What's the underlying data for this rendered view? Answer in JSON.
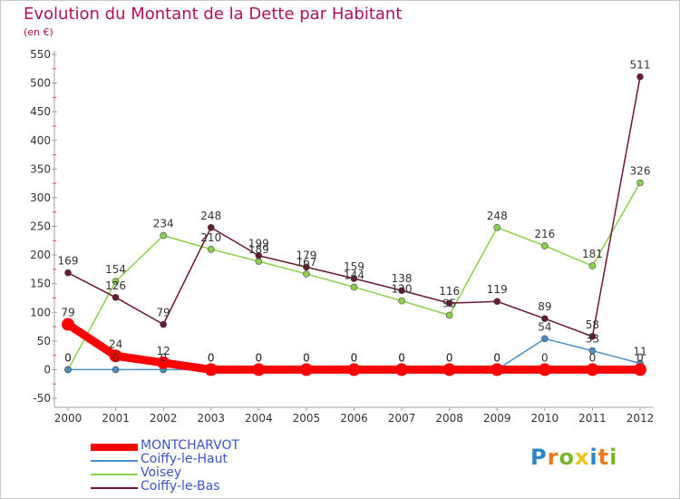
{
  "header": {
    "title": "Evolution du Montant de la Dette par Habitant",
    "subtitle": "(en €)"
  },
  "logo": {
    "letters": [
      "P",
      "r",
      "o",
      "x",
      "i",
      "t",
      "i"
    ],
    "colors": [
      "#2e86c8",
      "#e87a1e",
      "#7ab829",
      "#e8c41e",
      "#2e86c8",
      "#e87a1e",
      "#7ab829"
    ]
  },
  "legend": [
    {
      "label": "MONTCHARVOT",
      "color": "#ff0000"
    },
    {
      "label": "Coiffy-le-Haut",
      "color": "#4a8fc8"
    },
    {
      "label": "Voisey",
      "color": "#8ad04a"
    },
    {
      "label": "Coiffy-le-Bas",
      "color": "#6a1a2a"
    }
  ],
  "chart_data": {
    "type": "line",
    "title": "Evolution du Montant de la Dette par Habitant",
    "ylabel": "(en €)",
    "xlabel": "",
    "x": [
      "2000",
      "2001",
      "2002",
      "2003",
      "2004",
      "2005",
      "2006",
      "2007",
      "2008",
      "2009",
      "2010",
      "2011",
      "2012"
    ],
    "ylim": [
      -50,
      550
    ],
    "yticks": [
      "-50",
      "0",
      "50",
      "100",
      "150",
      "200",
      "250",
      "300",
      "350",
      "400",
      "450",
      "500",
      "550"
    ],
    "grid": false,
    "legend_position": "bottom-left",
    "series": [
      {
        "name": "MONTCHARVOT",
        "color": "#ff0000",
        "values": [
          79,
          24,
          12,
          0,
          0,
          0,
          0,
          0,
          0,
          0,
          0,
          0,
          0
        ],
        "labels": [
          "79",
          "24",
          "12",
          "0",
          "0",
          "0",
          "0",
          "0",
          "0",
          "0",
          "0",
          "0",
          "0"
        ]
      },
      {
        "name": "Coiffy-le-Haut",
        "color": "#4a8fc8",
        "values": [
          0,
          0,
          0,
          0,
          0,
          0,
          0,
          0,
          0,
          0,
          54,
          33,
          11
        ],
        "labels": [
          "0",
          "0",
          "0",
          "0",
          "0",
          "0",
          "0",
          "0",
          "0",
          "0",
          "54",
          "33",
          "11"
        ]
      },
      {
        "name": "Voisey",
        "color": "#8ad04a",
        "values": [
          0,
          154,
          234,
          210,
          189,
          167,
          144,
          120,
          95,
          248,
          216,
          181,
          326
        ],
        "labels": [
          "0",
          "154",
          "234",
          "210",
          "189",
          "167",
          "144",
          "120",
          "95",
          "248",
          "216",
          "181",
          "326"
        ]
      },
      {
        "name": "Coiffy-le-Bas",
        "color": "#6a1a2a",
        "values": [
          169,
          126,
          79,
          248,
          199,
          179,
          159,
          138,
          116,
          119,
          89,
          58,
          511
        ],
        "labels": [
          "169",
          "126",
          "79",
          "248",
          "199",
          "179",
          "159",
          "138",
          "116",
          "119",
          "89",
          "58",
          "511"
        ]
      }
    ]
  }
}
